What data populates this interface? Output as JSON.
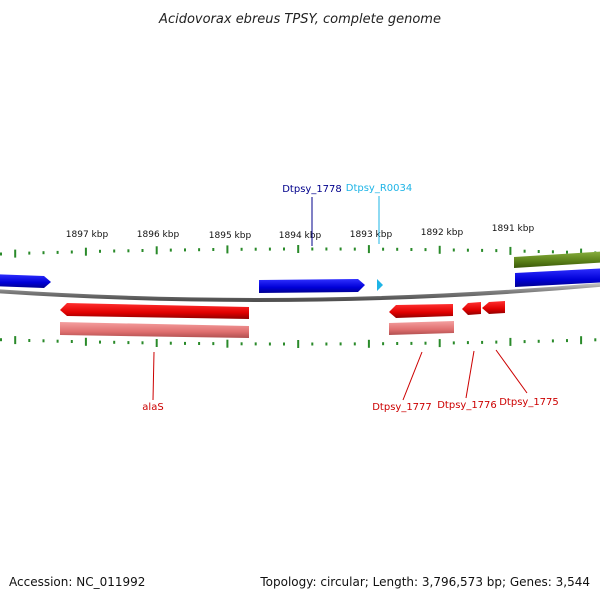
{
  "title": "Acidovorax ebreus TPSY, complete genome",
  "footer": {
    "accession": "Accession: NC_011992",
    "summary": "Topology: circular; Length: 3,796,573 bp; Genes: 3,544"
  },
  "scale_labels": [
    "1897 kbp",
    "1896 kbp",
    "1895 kbp",
    "1894 kbp",
    "1893 kbp",
    "1892 kbp",
    "1891 kbp"
  ],
  "top_labels": [
    {
      "text": "Dtpsy_1778",
      "color": "#00008b"
    },
    {
      "text": "Dtpsy_R0034",
      "color": "#1eb4e6"
    }
  ],
  "bottom_labels": [
    {
      "text": "alaS",
      "color": "#cc0000"
    },
    {
      "text": "Dtpsy_1777",
      "color": "#cc0000"
    },
    {
      "text": "Dtpsy_1776",
      "color": "#cc0000"
    },
    {
      "text": "Dtpsy_1775",
      "color": "#cc0000"
    }
  ],
  "colors": {
    "forward_gene": "#1010e0",
    "reverse_gene": "#e00000",
    "reverse_gene_light": "#e88080",
    "olive_feature": "#5f8a1a",
    "trna": "#1eb4e6",
    "tick": "#2a8a2a",
    "backbone": "#808080"
  }
}
